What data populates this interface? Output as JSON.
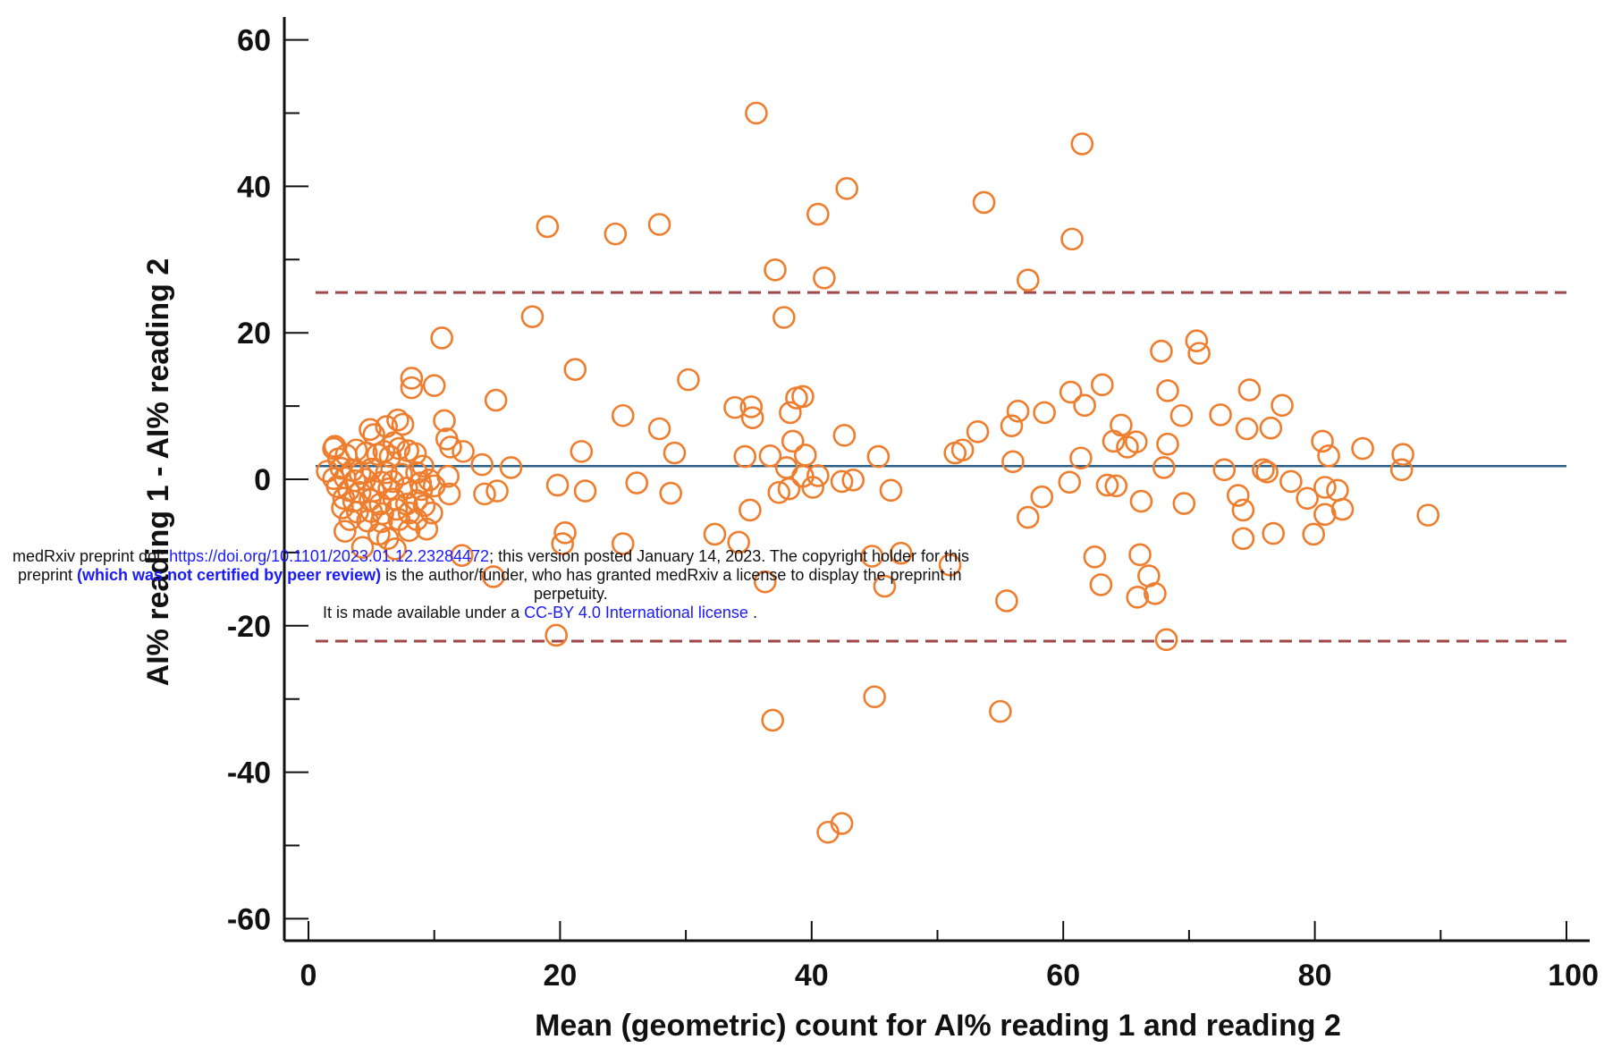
{
  "colors": {
    "point": "#ef7d2e",
    "mean_line": "#2e5f86",
    "loa_line": "#a04848",
    "axis": "#111111",
    "link": "#1a1aff"
  },
  "chart_data": {
    "type": "scatter",
    "title": "",
    "xlabel": "Mean (geometric) count for AI% reading 1 and reading 2",
    "ylabel": "AI% reading 1 - AI% reading 2",
    "xlim": [
      0,
      100
    ],
    "ylim": [
      -60,
      65
    ],
    "x_ticks": [
      0,
      20,
      40,
      60,
      80,
      100
    ],
    "y_ticks": [
      -60,
      -40,
      -20,
      0,
      20,
      40,
      60
    ],
    "grid": false,
    "reference_lines": [
      {
        "role": "mean",
        "y": 1.8,
        "style": "solid"
      },
      {
        "role": "upper_limit",
        "y": 25.5,
        "style": "dashed"
      },
      {
        "role": "lower_limit",
        "y": -22.1,
        "style": "dashed"
      }
    ],
    "points": [
      [
        35.6,
        50
      ],
      [
        61.5,
        45.8
      ],
      [
        42.8,
        39.7
      ],
      [
        53.7,
        37.8
      ],
      [
        40.5,
        36.2
      ],
      [
        19.0,
        34.5
      ],
      [
        27.9,
        34.8
      ],
      [
        24.4,
        33.5
      ],
      [
        60.7,
        32.8
      ],
      [
        37.1,
        28.6
      ],
      [
        41.0,
        27.5
      ],
      [
        57.2,
        27.2
      ],
      [
        17.8,
        22.2
      ],
      [
        37.8,
        22.1
      ],
      [
        10.6,
        19.3
      ],
      [
        70.6,
        18.9
      ],
      [
        70.8,
        17.2
      ],
      [
        67.8,
        17.5
      ],
      [
        21.2,
        15
      ],
      [
        30.2,
        13.6
      ],
      [
        8.2,
        13.8
      ],
      [
        8.2,
        12.5
      ],
      [
        10.0,
        12.8
      ],
      [
        63.1,
        12.9
      ],
      [
        60.6,
        11.9
      ],
      [
        68.3,
        12.1
      ],
      [
        74.8,
        12.2
      ],
      [
        14.9,
        10.8
      ],
      [
        39.3,
        11.3
      ],
      [
        38.8,
        11.1
      ],
      [
        61.7,
        10.1
      ],
      [
        33.9,
        9.8
      ],
      [
        35.2,
        9.9
      ],
      [
        38.3,
        9.1
      ],
      [
        35.3,
        8.4
      ],
      [
        56.4,
        9.3
      ],
      [
        58.5,
        9.1
      ],
      [
        69.4,
        8.7
      ],
      [
        72.5,
        8.8
      ],
      [
        25.0,
        8.7
      ],
      [
        77.4,
        10.1
      ],
      [
        10.8,
        8.0
      ],
      [
        55.9,
        7.3
      ],
      [
        64.6,
        7.4
      ],
      [
        74.6,
        6.9
      ],
      [
        76.5,
        7.0
      ],
      [
        27.9,
        6.9
      ],
      [
        53.2,
        6.5
      ],
      [
        42.6,
        6.0
      ],
      [
        7.1,
        8.1
      ],
      [
        7.5,
        7.5
      ],
      [
        6.2,
        7.2
      ],
      [
        5.2,
        6.1
      ],
      [
        4.9,
        6.8
      ],
      [
        11.0,
        5.5
      ],
      [
        38.5,
        5.2
      ],
      [
        65.8,
        5.1
      ],
      [
        64.0,
        5.2
      ],
      [
        68.3,
        4.8
      ],
      [
        80.6,
        5.2
      ],
      [
        11.3,
        4.4
      ],
      [
        6.8,
        5.0
      ],
      [
        7.2,
        4.2
      ],
      [
        7.9,
        3.9
      ],
      [
        8.5,
        3.5
      ],
      [
        12.3,
        3.8
      ],
      [
        2.0,
        4.2
      ],
      [
        3.8,
        4.0
      ],
      [
        4.6,
        3.6
      ],
      [
        5.5,
        3.4
      ],
      [
        6.0,
        3.8
      ],
      [
        6.5,
        3.1
      ],
      [
        3.0,
        3.3
      ],
      [
        2.4,
        2.8
      ],
      [
        2.1,
        4.5
      ],
      [
        21.7,
        3.8
      ],
      [
        29.1,
        3.6
      ],
      [
        34.7,
        3.1
      ],
      [
        36.7,
        3.2
      ],
      [
        39.5,
        3.3
      ],
      [
        45.3,
        3.1
      ],
      [
        51.4,
        3.6
      ],
      [
        52.0,
        4.0
      ],
      [
        61.4,
        2.9
      ],
      [
        65.1,
        4.4
      ],
      [
        81.1,
        3.2
      ],
      [
        83.8,
        4.2
      ],
      [
        87.0,
        3.4
      ],
      [
        13.8,
        2.0
      ],
      [
        16.1,
        1.6
      ],
      [
        38.0,
        1.6
      ],
      [
        56.0,
        2.4
      ],
      [
        68.0,
        1.6
      ],
      [
        72.8,
        1.3
      ],
      [
        75.9,
        1.3
      ],
      [
        76.2,
        1.0
      ],
      [
        86.9,
        1.3
      ],
      [
        1.5,
        1.1
      ],
      [
        2.6,
        1.5
      ],
      [
        3.5,
        1.2
      ],
      [
        4.1,
        0.8
      ],
      [
        5.0,
        1.4
      ],
      [
        6.2,
        0.9
      ],
      [
        7.4,
        0.7
      ],
      [
        8.6,
        0.9
      ],
      [
        9.1,
        1.8
      ],
      [
        11.1,
        0.4
      ],
      [
        40.5,
        0.5
      ],
      [
        39.3,
        0.4
      ],
      [
        2.0,
        0.1
      ],
      [
        2.9,
        0.2
      ],
      [
        3.7,
        -0.2
      ],
      [
        4.5,
        0.0
      ],
      [
        5.8,
        -0.4
      ],
      [
        6.7,
        -0.3
      ],
      [
        8.9,
        -0.5
      ],
      [
        9.6,
        -0.1
      ],
      [
        19.8,
        -0.8
      ],
      [
        26.1,
        -0.5
      ],
      [
        42.4,
        -0.3
      ],
      [
        43.3,
        -0.1
      ],
      [
        60.5,
        -0.4
      ],
      [
        63.5,
        -0.8
      ],
      [
        64.2,
        -0.9
      ],
      [
        78.1,
        -0.3
      ],
      [
        80.8,
        -1.1
      ],
      [
        81.8,
        -1.5
      ],
      [
        2.3,
        -1.0
      ],
      [
        3.2,
        -1.5
      ],
      [
        4.1,
        -1.8
      ],
      [
        5.2,
        -1.6
      ],
      [
        6.4,
        -1.3
      ],
      [
        7.8,
        -1.2
      ],
      [
        9.0,
        -1.4
      ],
      [
        10.0,
        -0.9
      ],
      [
        11.2,
        -2.0
      ],
      [
        14.0,
        -2.0
      ],
      [
        15.0,
        -1.6
      ],
      [
        22.0,
        -1.6
      ],
      [
        28.8,
        -1.9
      ],
      [
        37.4,
        -1.8
      ],
      [
        38.2,
        -1.3
      ],
      [
        40.1,
        -1.1
      ],
      [
        46.3,
        -1.5
      ],
      [
        58.3,
        -2.4
      ],
      [
        73.9,
        -2.2
      ],
      [
        79.4,
        -2.6
      ],
      [
        66.2,
        -3.0
      ],
      [
        69.6,
        -3.3
      ],
      [
        2.8,
        -2.6
      ],
      [
        3.6,
        -3.0
      ],
      [
        4.9,
        -2.8
      ],
      [
        5.7,
        -3.4
      ],
      [
        6.8,
        -2.7
      ],
      [
        7.8,
        -3.4
      ],
      [
        8.6,
        -2.9
      ],
      [
        9.2,
        -3.6
      ],
      [
        2.7,
        -3.9
      ],
      [
        3.9,
        -4.5
      ],
      [
        5.0,
        -4.4
      ],
      [
        5.9,
        -4.7
      ],
      [
        7.0,
        -4.1
      ],
      [
        8.0,
        -4.6
      ],
      [
        9.8,
        -4.6
      ],
      [
        3.3,
        -5.5
      ],
      [
        4.7,
        -5.7
      ],
      [
        5.8,
        -5.8
      ],
      [
        7.2,
        -5.5
      ],
      [
        8.6,
        -5.5
      ],
      [
        35.1,
        -4.2
      ],
      [
        74.3,
        -4.2
      ],
      [
        80.8,
        -4.8
      ],
      [
        82.2,
        -4.1
      ],
      [
        89.0,
        -4.9
      ],
      [
        57.2,
        -5.2
      ],
      [
        2.9,
        -7.1
      ],
      [
        5.6,
        -7.5
      ],
      [
        6.3,
        -8.1
      ],
      [
        8.0,
        -7.0
      ],
      [
        9.4,
        -6.8
      ],
      [
        20.4,
        -7.3
      ],
      [
        32.3,
        -7.5
      ],
      [
        79.9,
        -7.5
      ],
      [
        76.7,
        -7.4
      ],
      [
        74.3,
        -8.1
      ],
      [
        20.2,
        -8.8
      ],
      [
        25.0,
        -8.8
      ],
      [
        34.2,
        -8.6
      ],
      [
        4.3,
        -9.3
      ],
      [
        6.9,
        -9.5
      ],
      [
        12.2,
        -10.4
      ],
      [
        47.1,
        -10.1
      ],
      [
        66.1,
        -10.3
      ],
      [
        62.5,
        -10.6
      ],
      [
        51.0,
        -11.7
      ],
      [
        14.7,
        -13.3
      ],
      [
        36.3,
        -14.0
      ],
      [
        44.8,
        -10.5
      ],
      [
        66.8,
        -13.2
      ],
      [
        45.8,
        -14.6
      ],
      [
        63.0,
        -14.4
      ],
      [
        65.9,
        -16.1
      ],
      [
        67.3,
        -15.6
      ],
      [
        55.5,
        -16.6
      ],
      [
        19.7,
        -21.3
      ],
      [
        68.2,
        -21.9
      ],
      [
        45.0,
        -29.7
      ],
      [
        55.0,
        -31.7
      ],
      [
        36.9,
        -32.9
      ],
      [
        41.3,
        -48.2
      ],
      [
        42.4,
        -47.0
      ]
    ]
  },
  "banner": {
    "line1_pre": "medRxiv preprint doi: ",
    "line1_link": "https://doi.org/10.1101/2023.01.12.23284472",
    "line1_post": "; this version posted January 14, 2023. The copyright holder for this",
    "line2_pre": "preprint ",
    "line2_bold": "(which was not certified by peer review)",
    "line2_post": " is the author/funder, who has granted medRxiv a license to display the preprint in",
    "line3": "perpetuity.",
    "line4_pre": "It is made available under a ",
    "line4_link": "CC-BY 4.0 International license",
    "line4_post": " ."
  }
}
